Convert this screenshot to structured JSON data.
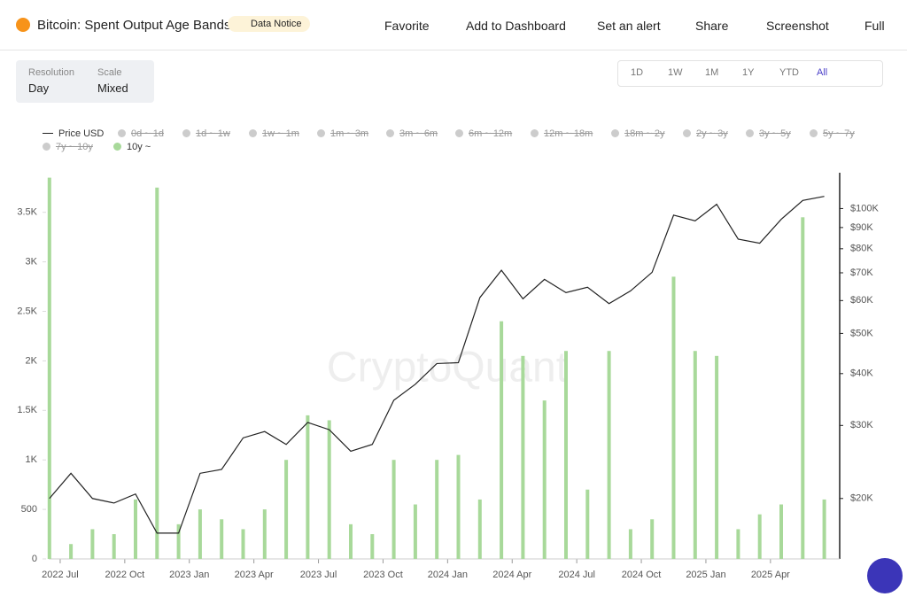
{
  "header": {
    "title": "Bitcoin: Spent Output Age Bands",
    "notice": "Data Notice",
    "actions": [
      "Favorite",
      "Add to Dashboard",
      "Set an alert",
      "Share",
      "Screenshot",
      "Full"
    ]
  },
  "controls": {
    "resolution": {
      "label": "Resolution",
      "value": "Day"
    },
    "scale": {
      "label": "Scale",
      "value": "Mixed"
    },
    "periods": [
      "1D",
      "1W",
      "1M",
      "1Y",
      "YTD",
      "All"
    ],
    "active_period": "All"
  },
  "chart_data": {
    "type": "bar-line",
    "watermark": "CryptoQuant",
    "legend_hidden": [
      "0d ~ 1d",
      "1d ~ 1w",
      "1w ~ 1m",
      "1m ~ 3m",
      "3m ~ 6m",
      "6m ~ 12m",
      "12m ~ 18m",
      "18m ~ 2y",
      "2y ~ 3y",
      "3y ~ 5y",
      "5y ~ 7y",
      "7y ~ 10y"
    ],
    "x": [
      "2022-06",
      "2022-07",
      "2022-08",
      "2022-09",
      "2022-10",
      "2022-11",
      "2022-12",
      "2023-01",
      "2023-02",
      "2023-03",
      "2023-04",
      "2023-05",
      "2023-06",
      "2023-07",
      "2023-08",
      "2023-09",
      "2023-10",
      "2023-11",
      "2023-12",
      "2024-01",
      "2024-02",
      "2024-03",
      "2024-04",
      "2024-05",
      "2024-06",
      "2024-07",
      "2024-08",
      "2024-09",
      "2024-10",
      "2024-11",
      "2024-12",
      "2025-01",
      "2025-02",
      "2025-03",
      "2025-04",
      "2025-05",
      "2025-06"
    ],
    "series": [
      {
        "name": "Price USD",
        "color": "#222222",
        "axis": "y2",
        "kind": "line",
        "values": [
          20000,
          23000,
          20000,
          19500,
          20500,
          16500,
          16500,
          23000,
          23500,
          28000,
          29000,
          27000,
          30500,
          29300,
          26000,
          27000,
          34500,
          37700,
          42300,
          42500,
          61000,
          71000,
          60600,
          67500,
          62700,
          64600,
          59000,
          63300,
          70200,
          96400,
          93400,
          102400,
          84400,
          82500,
          94200,
          104600,
          107000
        ]
      },
      {
        "name": "10y ~",
        "color": "#a8d99a",
        "kind": "bar",
        "values": [
          3850,
          150,
          300,
          250,
          600,
          3750,
          350,
          500,
          400,
          300,
          500,
          1000,
          1450,
          1400,
          350,
          250,
          1000,
          550,
          1000,
          1050,
          600,
          2400,
          2050,
          1600,
          2100,
          700,
          2100,
          300,
          400,
          2850,
          2100,
          2050,
          300,
          450,
          550,
          3450,
          600
        ]
      }
    ],
    "xticks": [
      {
        "value": "2022-07",
        "label": "2022 Jul"
      },
      {
        "value": "2022-10",
        "label": "2022 Oct"
      },
      {
        "value": "2023-01",
        "label": "2023 Jan"
      },
      {
        "value": "2023-04",
        "label": "2023 Apr"
      },
      {
        "value": "2023-07",
        "label": "2023 Jul"
      },
      {
        "value": "2023-10",
        "label": "2023 Oct"
      },
      {
        "value": "2024-01",
        "label": "2024 Jan"
      },
      {
        "value": "2024-04",
        "label": "2024 Apr"
      },
      {
        "value": "2024-07",
        "label": "2024 Jul"
      },
      {
        "value": "2024-10",
        "label": "2024 Oct"
      },
      {
        "value": "2025-01",
        "label": "2025 Jan"
      },
      {
        "value": "2025-04",
        "label": "2025 Apr"
      }
    ],
    "ylim": [
      0,
      3900
    ],
    "yticks": [
      0,
      500,
      {
        "value": 1000,
        "label": "1K"
      },
      {
        "value": 1500,
        "label": "1.5K"
      },
      {
        "value": 2000,
        "label": "2K"
      },
      {
        "value": 2500,
        "label": "2.5K"
      },
      {
        "value": 3000,
        "label": "3K"
      },
      {
        "value": 3500,
        "label": "3.5K"
      }
    ],
    "y2lim": [
      14300,
      122000
    ],
    "y2log": true,
    "y2ticks": [
      {
        "value": 20000,
        "label": "$20K"
      },
      {
        "value": 30000,
        "label": "$30K"
      },
      {
        "value": 40000,
        "label": "$40K"
      },
      {
        "value": 50000,
        "label": "$50K"
      },
      {
        "value": 60000,
        "label": "$60K"
      },
      {
        "value": 70000,
        "label": "$70K"
      },
      {
        "value": 80000,
        "label": "$80K"
      },
      {
        "value": 90000,
        "label": "$90K"
      },
      {
        "value": 100000,
        "label": "$100K"
      }
    ]
  }
}
